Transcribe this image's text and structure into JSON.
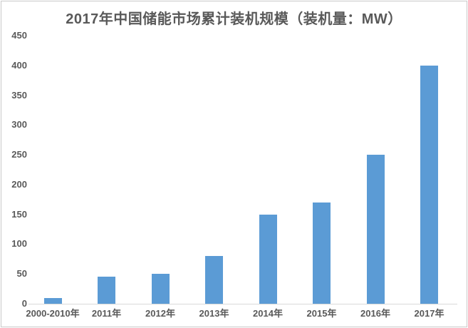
{
  "chart_data": {
    "type": "bar",
    "title": "2017年中国储能市场累计装机规模（装机量：MW）",
    "categories": [
      "2000-2010年",
      "2011年",
      "2012年",
      "2013年",
      "2014年",
      "2015年",
      "2016年",
      "2017年"
    ],
    "values": [
      10,
      45,
      50,
      80,
      150,
      170,
      250,
      400
    ],
    "xlabel": "",
    "ylabel": "",
    "ylim": [
      0,
      450
    ],
    "ytick_step": 50,
    "yticks": [
      0,
      50,
      100,
      150,
      200,
      250,
      300,
      350,
      400,
      450
    ],
    "grid": false,
    "legend": false,
    "bar_color": "#5b9bd5",
    "title_color": "#595959",
    "axis_text_color": "#595959",
    "axis_line_color": "#d9d9d9"
  }
}
